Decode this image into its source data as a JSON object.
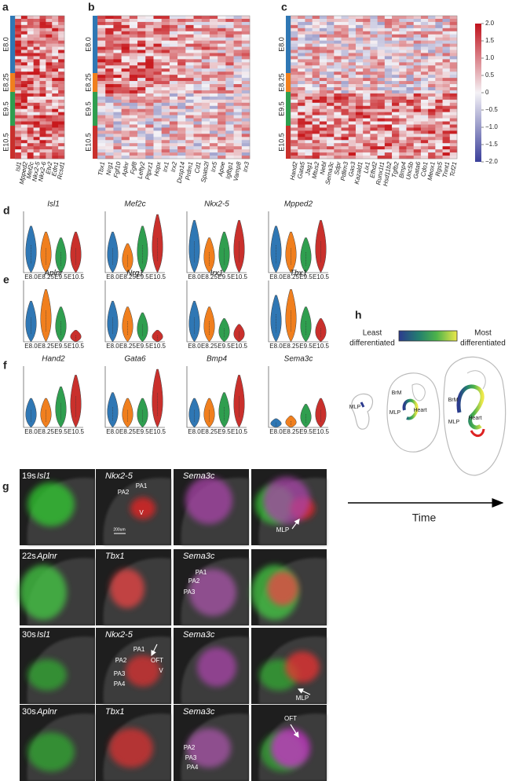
{
  "stages": [
    "E8.0",
    "E8.25",
    "E9.5",
    "E10.5"
  ],
  "panels": {
    "a": {
      "letter": "a",
      "genes": [
        "Isl1",
        "Mpped2",
        "Mef2c",
        "Nkx2-5",
        "Nkx2-6",
        "Etv2",
        "Edn1",
        "Rcsd1"
      ]
    },
    "b": {
      "letter": "b",
      "genes": [
        "Tbx1",
        "Nrg1",
        "Fgf10",
        "Aplnr",
        "Fgf8",
        "Lefty2",
        "Ptprz1",
        "Hopx",
        "Irx1",
        "Irx2",
        "Dusp14",
        "Prdm1",
        "Cd1",
        "Spats2l",
        "Irx5",
        "Apoe",
        "Igfbp1",
        "Vamp8",
        "Irx3"
      ]
    },
    "c": {
      "letter": "c",
      "genes": [
        "Hand2",
        "Gata5",
        "Jag1",
        "Mtus2",
        "Nebl",
        "Sema3c",
        "Sdpr",
        "Pdlim3",
        "Gas3",
        "Kazald1",
        "Lix1",
        "Efhd2",
        "Runx1t1",
        "Hsd11b2",
        "Tgfb2",
        "Bmp4",
        "Unc5b",
        "Gata6",
        "Cdo1",
        "Meox1",
        "Rgs5",
        "Tnnt1",
        "Tcf21"
      ],
      "colorbar": {
        "lim": [
          -2,
          2
        ],
        "ticks": [
          {
            "value": 2,
            "label": "2.0"
          },
          {
            "value": 1.5,
            "label": "1.5"
          },
          {
            "value": 1,
            "label": "1.0"
          },
          {
            "value": 0.5,
            "label": "0.5"
          },
          0,
          {
            "value": -0.5,
            "label": "−0.5"
          },
          {
            "value": -1,
            "label": "−1.0"
          },
          {
            "value": -1.5,
            "label": "−1.5"
          },
          {
            "value": -2,
            "label": "−2.0"
          }
        ]
      }
    },
    "d": {
      "letter": "d",
      "genes": [
        "Isl1",
        "Mef2c",
        "Nkx2-5",
        "Mpped2"
      ]
    },
    "e": {
      "letter": "e",
      "genes": [
        "Aplnr",
        "Nrg1",
        "Irx1",
        "Tbx1"
      ]
    },
    "f": {
      "letter": "f",
      "genes": [
        "Hand2",
        "Gata6",
        "Bmp4",
        "Sema3c"
      ]
    },
    "g": {
      "letter": "g",
      "scale_bar": "200um",
      "rows": [
        {
          "stage": "19s",
          "markers": [
            "Isl1",
            "Nkx2-5",
            "Sema3c"
          ],
          "annotations": [
            "PA2",
            "PA1",
            "V",
            "MLP"
          ]
        },
        {
          "stage": "22s",
          "markers": [
            "Aplnr",
            "Tbx1",
            "Sema3c"
          ],
          "annotations": [
            "PA1",
            "PA2",
            "PA3"
          ]
        },
        {
          "stage": "30s",
          "markers": [
            "Isl1",
            "Nkx2-5",
            "Sema3c"
          ],
          "annotations": [
            "OFT",
            "PA1",
            "PA2",
            "PA3",
            "PA4",
            "V",
            "MLP"
          ]
        },
        {
          "stage": "30s",
          "markers": [
            "Aplnr",
            "Tbx1",
            "Sema3c"
          ],
          "annotations": [
            "PA2",
            "PA3",
            "PA4",
            "OFT"
          ]
        }
      ]
    },
    "h": {
      "letter": "h",
      "least": [
        "Least",
        "differentiated"
      ],
      "most": [
        "Most",
        "differentiated"
      ],
      "labels": [
        "MLP",
        "BrM",
        "MLP",
        "Heart",
        "BrM",
        "MLP",
        "Heart"
      ],
      "time": "Time"
    }
  }
}
